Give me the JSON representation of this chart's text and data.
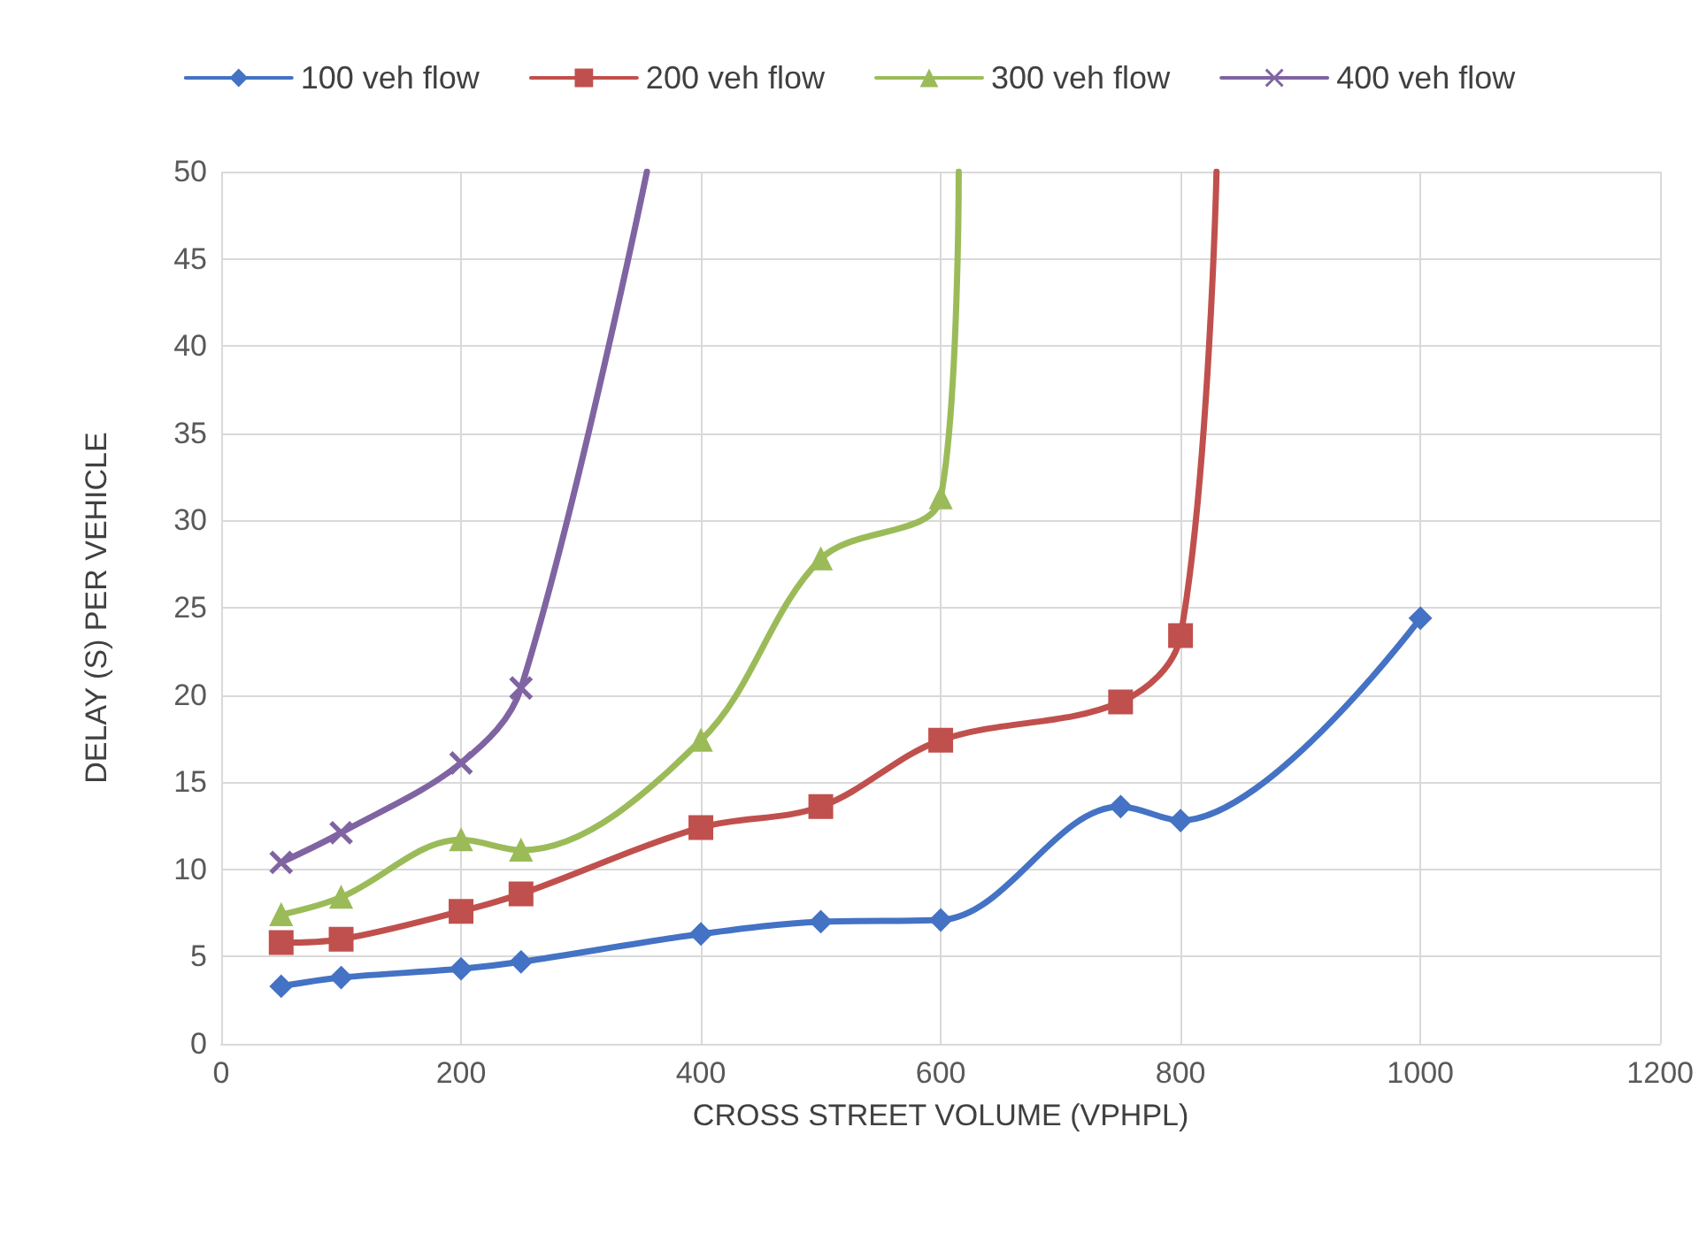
{
  "chart_data": {
    "type": "line",
    "xlabel": "CROSS STREET VOLUME (VPHPL)",
    "ylabel": "DELAY (S) PER VEHICLE",
    "xlim": [
      0,
      1200
    ],
    "xticks": [
      0,
      200,
      400,
      600,
      800,
      1000,
      1200
    ],
    "ylim": [
      0,
      50
    ],
    "yticks": [
      0,
      5,
      10,
      15,
      20,
      25,
      30,
      35,
      40,
      45,
      50
    ],
    "grid": true,
    "legend": "top",
    "line_style": "solid",
    "series": [
      {
        "name": "100 veh flow",
        "color": "#4472c4",
        "marker": "diamond",
        "x": [
          50,
          100,
          200,
          250,
          400,
          500,
          600,
          750,
          800,
          1000
        ],
        "values": [
          3.3,
          3.8,
          4.3,
          4.7,
          6.3,
          7.0,
          7.1,
          13.6,
          12.8,
          24.4
        ]
      },
      {
        "name": "200 veh flow",
        "color": "#c0504d",
        "marker": "square",
        "x": [
          50,
          100,
          200,
          250,
          400,
          500,
          600,
          750,
          800,
          830
        ],
        "values": [
          5.8,
          6.0,
          7.6,
          8.6,
          12.4,
          13.6,
          17.4,
          19.6,
          23.4,
          50
        ]
      },
      {
        "name": "300 veh flow",
        "color": "#9bbb59",
        "marker": "triangle",
        "x": [
          50,
          100,
          200,
          250,
          400,
          500,
          600,
          615
        ],
        "values": [
          7.4,
          8.4,
          11.7,
          11.1,
          17.4,
          27.8,
          31.3,
          50
        ]
      },
      {
        "name": "400 veh flow",
        "color": "#8064a2",
        "marker": "cross",
        "x": [
          50,
          100,
          200,
          250,
          355
        ],
        "values": [
          10.4,
          12.1,
          16.1,
          20.4,
          50
        ]
      }
    ]
  }
}
